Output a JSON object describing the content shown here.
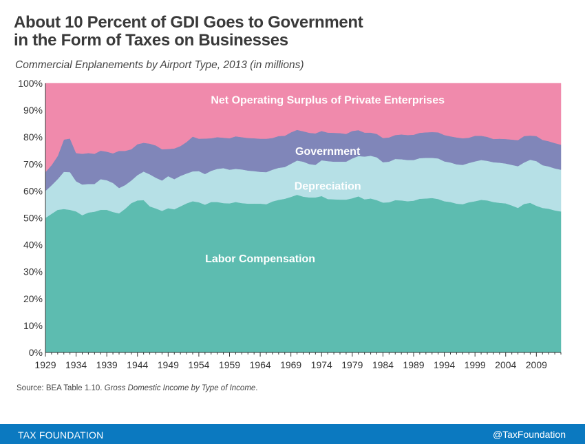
{
  "header": {
    "title_line1": "About 10 Percent of GDI Goes to Government",
    "title_line2": "in the Form of Taxes on Businesses",
    "subtitle": "Commercial Enplanements by Airport Type, 2013 (in millions)"
  },
  "source": {
    "prefix": "Source: BEA Table 1.10. ",
    "italic": "Gross Domestic Income by Type of Income",
    "suffix": "."
  },
  "footer": {
    "brand": "TAX FOUNDATION",
    "handle": "@TaxFoundation",
    "color": "#0b79c0"
  },
  "chart_data": {
    "type": "area",
    "stacked": true,
    "x_range": [
      1929,
      2013
    ],
    "ylim": [
      0,
      100
    ],
    "y_unit": "%",
    "y_ticks": [
      0,
      10,
      20,
      30,
      40,
      50,
      60,
      70,
      80,
      90,
      100
    ],
    "y_tick_labels": [
      "0%",
      "10%",
      "20%",
      "30%",
      "40%",
      "50%",
      "60%",
      "70%",
      "80%",
      "90%",
      "100%"
    ],
    "x_ticks": [
      1929,
      1934,
      1939,
      1944,
      1949,
      1954,
      1959,
      1964,
      1969,
      1974,
      1979,
      1984,
      1989,
      1994,
      1999,
      2004,
      2009
    ],
    "x": [
      1929,
      1930,
      1931,
      1932,
      1933,
      1934,
      1935,
      1936,
      1937,
      1938,
      1939,
      1940,
      1941,
      1942,
      1943,
      1944,
      1945,
      1946,
      1947,
      1948,
      1949,
      1950,
      1951,
      1952,
      1953,
      1954,
      1955,
      1956,
      1957,
      1958,
      1959,
      1960,
      1961,
      1962,
      1963,
      1964,
      1965,
      1966,
      1967,
      1968,
      1969,
      1970,
      1971,
      1972,
      1973,
      1974,
      1975,
      1976,
      1977,
      1978,
      1979,
      1980,
      1981,
      1982,
      1983,
      1984,
      1985,
      1986,
      1987,
      1988,
      1989,
      1990,
      1991,
      1992,
      1993,
      1994,
      1995,
      1996,
      1997,
      1998,
      1999,
      2000,
      2001,
      2002,
      2003,
      2004,
      2005,
      2006,
      2007,
      2008,
      2009,
      2010,
      2011,
      2012,
      2013
    ],
    "series": [
      {
        "name": "Labor Compensation",
        "color": "#5dbcb0",
        "label_at": [
          1964,
          35
        ],
        "values": [
          50.0,
          51.5,
          53.0,
          53.3,
          53.0,
          52.4,
          51.0,
          52.0,
          52.3,
          53.0,
          53.0,
          52.2,
          51.7,
          53.4,
          55.5,
          56.5,
          56.6,
          54.3,
          53.5,
          52.6,
          53.6,
          53.2,
          54.3,
          55.4,
          56.2,
          55.8,
          54.9,
          55.9,
          55.9,
          55.5,
          55.4,
          55.9,
          55.5,
          55.3,
          55.3,
          55.3,
          55.1,
          56.1,
          56.7,
          57.1,
          57.8,
          58.6,
          57.9,
          57.6,
          57.6,
          58.1,
          57.0,
          56.9,
          56.8,
          56.8,
          57.3,
          58.0,
          56.9,
          57.2,
          56.6,
          55.7,
          55.8,
          56.6,
          56.5,
          56.2,
          56.4,
          57.1,
          57.2,
          57.4,
          57.0,
          56.2,
          55.9,
          55.3,
          55.1,
          55.8,
          56.2,
          56.7,
          56.5,
          55.9,
          55.6,
          55.4,
          54.6,
          53.7,
          55.2,
          55.6,
          54.5,
          53.7,
          53.4,
          52.8,
          52.4
        ]
      },
      {
        "name": "Depreciation",
        "color": "#b6e0e6",
        "label_at": [
          1975,
          62
        ],
        "values": [
          10.0,
          10.6,
          11.4,
          13.8,
          14.0,
          11.2,
          11.4,
          10.6,
          10.3,
          11.4,
          11.0,
          10.8,
          9.4,
          8.8,
          8.4,
          9.4,
          10.6,
          11.9,
          11.4,
          11.3,
          11.9,
          11.2,
          11.3,
          11.1,
          11.1,
          11.6,
          11.4,
          11.6,
          12.3,
          13.0,
          12.5,
          12.3,
          12.5,
          12.3,
          12.1,
          11.8,
          11.9,
          11.8,
          11.9,
          11.8,
          12.3,
          12.7,
          13.0,
          12.4,
          12.1,
          13.3,
          14.1,
          14.0,
          14.1,
          14.1,
          14.8,
          15.0,
          15.9,
          15.9,
          15.9,
          15.0,
          15.1,
          15.3,
          15.3,
          15.3,
          15.1,
          15.1,
          15.1,
          14.9,
          15.1,
          14.8,
          14.7,
          14.6,
          14.6,
          14.6,
          14.8,
          14.8,
          14.7,
          14.8,
          14.9,
          14.8,
          15.1,
          15.5,
          15.4,
          16.0,
          16.6,
          15.9,
          15.7,
          15.6,
          15.5
        ]
      },
      {
        "name": "Government",
        "color": "#8086b9",
        "label_at": [
          1975,
          75
        ],
        "values": [
          7.0,
          7.5,
          8.6,
          12.0,
          12.5,
          10.5,
          11.4,
          11.5,
          11.2,
          10.6,
          10.6,
          11.0,
          13.8,
          12.7,
          11.6,
          11.5,
          10.7,
          11.4,
          12.0,
          11.6,
          10.1,
          11.4,
          11.1,
          11.7,
          12.9,
          12.0,
          13.2,
          12.1,
          11.8,
          11.3,
          11.7,
          12.1,
          12.0,
          12.1,
          12.2,
          12.3,
          12.4,
          11.8,
          11.8,
          11.6,
          11.7,
          11.4,
          11.3,
          11.6,
          11.7,
          10.9,
          10.6,
          10.7,
          10.6,
          10.3,
          10.2,
          9.6,
          8.9,
          8.6,
          8.7,
          9.0,
          9.0,
          8.9,
          9.2,
          9.3,
          9.4,
          9.4,
          9.5,
          9.6,
          9.7,
          9.8,
          9.7,
          10.0,
          9.9,
          9.4,
          9.5,
          9.0,
          8.9,
          8.6,
          8.9,
          9.1,
          9.4,
          9.7,
          9.8,
          9.0,
          9.3,
          9.4,
          9.4,
          9.4,
          9.3
        ]
      },
      {
        "name": "Net Operating Surplus of Private Enterprises",
        "color": "#f08aac",
        "label_at": [
          1975,
          94
        ],
        "values": [
          33.0,
          30.4,
          27.0,
          20.9,
          20.5,
          25.9,
          26.2,
          25.9,
          26.2,
          25.0,
          25.4,
          26.0,
          25.1,
          25.1,
          24.5,
          22.6,
          22.1,
          22.4,
          23.1,
          24.5,
          24.4,
          24.2,
          23.3,
          21.8,
          19.8,
          20.6,
          20.5,
          20.4,
          20.0,
          20.2,
          20.4,
          19.7,
          20.0,
          20.3,
          20.4,
          20.6,
          20.6,
          20.3,
          19.6,
          19.5,
          18.2,
          17.3,
          17.8,
          18.4,
          18.6,
          17.7,
          18.3,
          18.4,
          18.5,
          18.8,
          17.7,
          17.4,
          18.3,
          18.3,
          18.8,
          20.3,
          20.1,
          19.2,
          19.0,
          19.2,
          19.1,
          18.4,
          18.2,
          18.1,
          18.2,
          19.2,
          19.7,
          20.1,
          20.4,
          20.2,
          19.5,
          19.5,
          19.9,
          20.7,
          20.6,
          20.7,
          20.9,
          21.1,
          19.6,
          19.4,
          19.6,
          21.0,
          21.5,
          22.2,
          22.8
        ]
      }
    ]
  }
}
